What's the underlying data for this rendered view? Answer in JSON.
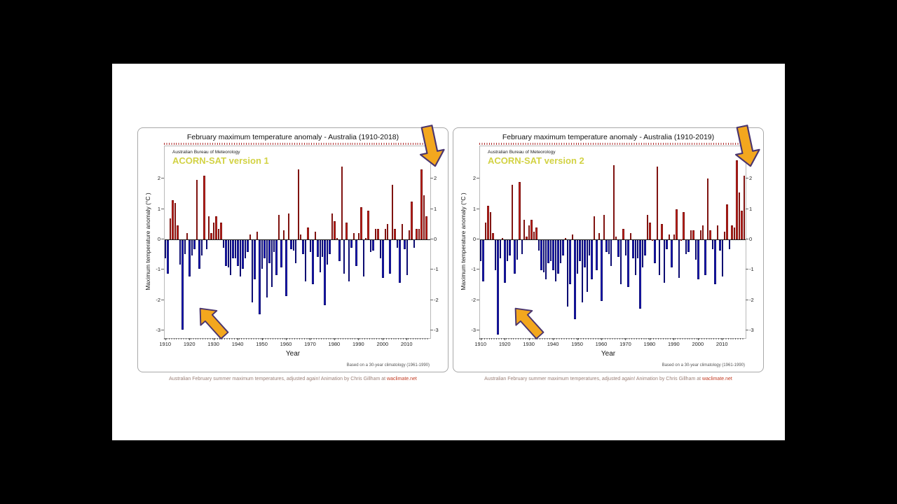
{
  "colors": {
    "background": "#000000",
    "canvas": "#ffffff",
    "bar_positive": "#c8231d",
    "bar_negative": "#1f1fc4",
    "version_label_yellow": "#d2d243",
    "arrow_fill": "#f3a71e",
    "arrow_outline": "#4a356e",
    "caption_link": "#c23b22"
  },
  "caption": {
    "text": "Australian February summer maximum temperatures, adjusted again! Animation by Chris Gillham at ",
    "link": "waclimate.net"
  },
  "chart_data": [
    {
      "type": "bar",
      "title": "February maximum temperature anomaly - Australia (1910-2018)",
      "source": "Australian Bureau of Meteorology",
      "series_label": "ACORN-SAT version 1",
      "xlabel": "Year",
      "ylabel": "Maximum temperature anomaly (°C )",
      "note": "Based on a 30-year climatology (1961-1990)",
      "x_start": 1910,
      "x_end": 2018,
      "ylim": [
        -3.25,
        3.06
      ],
      "grid": false,
      "yticks": [
        2,
        1,
        0,
        -1,
        -2,
        -3
      ],
      "xticks": [
        1910,
        1920,
        1930,
        1940,
        1950,
        1960,
        1970,
        1980,
        1990,
        2000,
        2010
      ],
      "annotations": [
        "arrow pointing at deep 1917 negative bar",
        "arrow pointing at recent warm bars near 2018"
      ],
      "values": [
        -0.6,
        -1.1,
        0.7,
        1.3,
        1.2,
        0.45,
        -0.8,
        -2.95,
        -0.45,
        0.2,
        -1.2,
        -0.5,
        -0.3,
        1.95,
        -0.95,
        -0.5,
        2.1,
        -0.3,
        0.75,
        0.2,
        0.55,
        0.75,
        0.35,
        0.55,
        -0.25,
        -0.85,
        -0.9,
        -1.15,
        -0.6,
        -0.6,
        -0.85,
        -1.2,
        -0.95,
        -0.6,
        -0.4,
        0.15,
        -2.05,
        -1.3,
        0.25,
        -2.45,
        -0.95,
        -0.6,
        -1.9,
        -0.75,
        -1.55,
        -0.4,
        -1.15,
        0.8,
        -0.9,
        0.3,
        -1.85,
        0.85,
        -0.3,
        -0.35,
        -0.75,
        2.3,
        0.15,
        -0.45,
        -1.35,
        0.4,
        -0.4,
        -1.45,
        0.25,
        -0.55,
        -1.05,
        -0.55,
        -2.15,
        -0.8,
        -0.45,
        0.85,
        0.6,
        0.05,
        -0.7,
        2.4,
        -1.1,
        0.55,
        -1.35,
        -0.25,
        0.2,
        -0.85,
        0.2,
        1.05,
        -1.2,
        0.05,
        0.95,
        -0.4,
        -0.35,
        0.35,
        0.35,
        -0.6,
        -1.25,
        0.35,
        0.5,
        -1.1,
        1.8,
        0.35,
        -0.25,
        -1.4,
        0.5,
        -0.3,
        -1.15,
        0.3,
        1.25,
        -0.25,
        0.35,
        0.35,
        2.3,
        1.45,
        0.75
      ]
    },
    {
      "type": "bar",
      "title": "February maximum temperature anomaly - Australia (1910-2019)",
      "source": "Australian Bureau of Meteorology",
      "series_label": "ACORN-SAT version 2",
      "xlabel": "Year",
      "ylabel": "Maximum temperature anomaly (°C )",
      "note": "Based on a 30-year climatology (1961-1990)",
      "x_start": 1910,
      "x_end": 2019,
      "ylim": [
        -3.25,
        3.06
      ],
      "grid": false,
      "yticks": [
        2,
        1,
        0,
        -1,
        -2,
        -3
      ],
      "xticks": [
        1910,
        1920,
        1930,
        1940,
        1950,
        1960,
        1970,
        1980,
        1990,
        2000,
        2010
      ],
      "annotations": [
        "arrow pointing at deep 1917 negative bar",
        "arrow pointing at new 2019 bar"
      ],
      "values": [
        -0.7,
        -1.35,
        0.55,
        1.1,
        0.9,
        0.2,
        -1.0,
        -3.1,
        -0.6,
        0.05,
        -1.4,
        -0.7,
        -0.5,
        1.8,
        -1.1,
        -0.65,
        1.9,
        -0.45,
        0.65,
        0.1,
        0.45,
        0.65,
        0.25,
        0.4,
        -0.35,
        -1.0,
        -1.05,
        -1.3,
        -0.75,
        -0.7,
        -1.0,
        -1.35,
        -1.1,
        -0.75,
        -0.5,
        0.05,
        -2.2,
        -1.45,
        0.15,
        -2.6,
        -1.1,
        -0.7,
        -2.05,
        -0.9,
        -1.7,
        -0.5,
        -1.3,
        0.75,
        -1.0,
        0.2,
        -2.0,
        0.8,
        -0.4,
        -0.45,
        -0.85,
        2.45,
        0.1,
        -0.55,
        -1.45,
        0.35,
        -0.5,
        -1.55,
        0.2,
        -0.6,
        -1.15,
        -0.6,
        -2.25,
        -0.9,
        -0.5,
        0.8,
        0.55,
        0.0,
        -0.75,
        2.4,
        -1.15,
        0.5,
        -1.4,
        -0.3,
        0.15,
        -0.9,
        0.15,
        1.0,
        -1.25,
        0.0,
        0.9,
        -0.45,
        -0.4,
        0.3,
        0.3,
        -0.65,
        -1.3,
        0.3,
        0.45,
        -1.15,
        2.0,
        0.3,
        -0.3,
        -1.45,
        0.45,
        -0.35,
        -1.2,
        0.25,
        1.15,
        -0.3,
        0.45,
        0.4,
        2.6,
        1.55,
        0.95,
        2.1
      ]
    }
  ]
}
